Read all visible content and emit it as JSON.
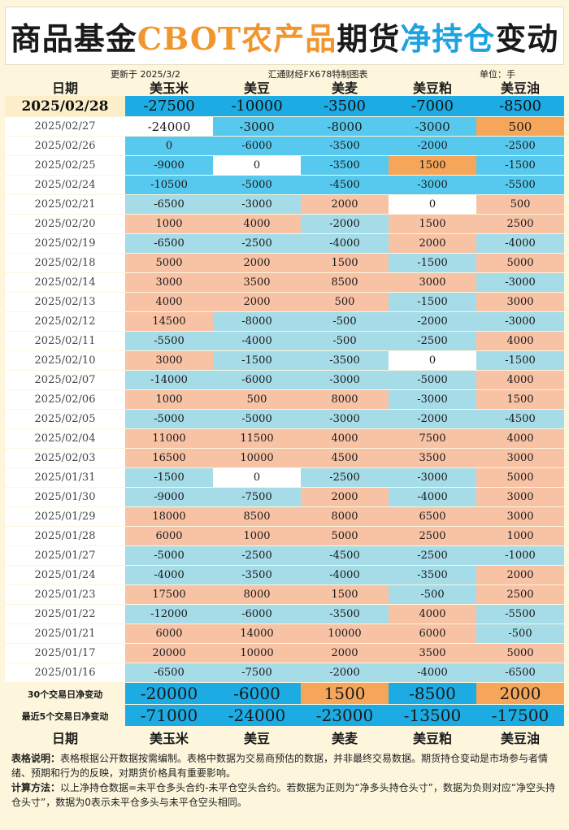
{
  "title": {
    "part1": "商品基金",
    "part2": "CBOT农产品",
    "part3": "期货",
    "part4": "净持仓",
    "part5": "变动"
  },
  "meta": {
    "updated": "更新于 2025/3/2",
    "source": "汇通财经FX678特制图表",
    "unit": "单位：手"
  },
  "header": {
    "date": "日期",
    "corn": "美玉米",
    "soy": "美豆",
    "wheat": "美麦",
    "meal": "美豆粕",
    "oil": "美豆油"
  },
  "rows": [
    {
      "date": "2025/02/28",
      "v": [
        "-27500",
        "-10000",
        "-3500",
        "-7000",
        "-8500"
      ]
    },
    {
      "date": "2025/02/27",
      "v": [
        "-24000",
        "-3000",
        "-8000",
        "-3000",
        "500"
      ]
    },
    {
      "date": "2025/02/26",
      "v": [
        "0",
        "-6000",
        "-3500",
        "-2000",
        "-2500"
      ]
    },
    {
      "date": "2025/02/25",
      "v": [
        "-9000",
        "0",
        "-3500",
        "1500",
        "-1500"
      ]
    },
    {
      "date": "2025/02/24",
      "v": [
        "-10500",
        "-5000",
        "-4500",
        "-3000",
        "-5500"
      ]
    },
    {
      "date": "2025/02/21",
      "v": [
        "-6500",
        "-3000",
        "2000",
        "0",
        "500"
      ]
    },
    {
      "date": "2025/02/20",
      "v": [
        "1000",
        "4000",
        "-2000",
        "1500",
        "2500"
      ]
    },
    {
      "date": "2025/02/19",
      "v": [
        "-6500",
        "-2500",
        "-4000",
        "2000",
        "-4000"
      ]
    },
    {
      "date": "2025/02/18",
      "v": [
        "5000",
        "2000",
        "1500",
        "-1500",
        "5000"
      ]
    },
    {
      "date": "2025/02/14",
      "v": [
        "3000",
        "3500",
        "8500",
        "3000",
        "-3000"
      ]
    },
    {
      "date": "2025/02/13",
      "v": [
        "4000",
        "2000",
        "500",
        "-1500",
        "3000"
      ]
    },
    {
      "date": "2025/02/12",
      "v": [
        "14500",
        "-8000",
        "-500",
        "-2000",
        "-3000"
      ]
    },
    {
      "date": "2025/02/11",
      "v": [
        "-5500",
        "-4000",
        "-500",
        "-2500",
        "4000"
      ]
    },
    {
      "date": "2025/02/10",
      "v": [
        "3000",
        "-1500",
        "-3500",
        "0",
        "-1500"
      ]
    },
    {
      "date": "2025/02/07",
      "v": [
        "-14000",
        "-6000",
        "-3000",
        "-5000",
        "4000"
      ]
    },
    {
      "date": "2025/02/06",
      "v": [
        "1000",
        "500",
        "8000",
        "-3000",
        "1500"
      ]
    },
    {
      "date": "2025/02/05",
      "v": [
        "-5000",
        "-5000",
        "-3000",
        "-2000",
        "-4500"
      ]
    },
    {
      "date": "2025/02/04",
      "v": [
        "11000",
        "11500",
        "4000",
        "7500",
        "4000"
      ]
    },
    {
      "date": "2025/02/03",
      "v": [
        "16500",
        "10000",
        "4500",
        "3500",
        "3000"
      ]
    },
    {
      "date": "2025/01/31",
      "v": [
        "-1500",
        "0",
        "-2500",
        "-3000",
        "5000"
      ]
    },
    {
      "date": "2025/01/30",
      "v": [
        "-9000",
        "-7500",
        "2000",
        "-4000",
        "3000"
      ]
    },
    {
      "date": "2025/01/29",
      "v": [
        "18000",
        "8500",
        "8000",
        "6500",
        "3000"
      ]
    },
    {
      "date": "2025/01/28",
      "v": [
        "6000",
        "1000",
        "5000",
        "2500",
        "1000"
      ]
    },
    {
      "date": "2025/01/27",
      "v": [
        "-5000",
        "-2500",
        "-4500",
        "-2500",
        "-1000"
      ]
    },
    {
      "date": "2025/01/24",
      "v": [
        "-4000",
        "-3500",
        "-4000",
        "-3500",
        "2000"
      ]
    },
    {
      "date": "2025/01/23",
      "v": [
        "17500",
        "8000",
        "1500",
        "-500",
        "2500"
      ]
    },
    {
      "date": "2025/01/22",
      "v": [
        "-12000",
        "-6000",
        "-3500",
        "4000",
        "-5500"
      ]
    },
    {
      "date": "2025/01/21",
      "v": [
        "6000",
        "14000",
        "10000",
        "6000",
        "-500"
      ]
    },
    {
      "date": "2025/01/17",
      "v": [
        "20000",
        "10000",
        "2000",
        "3500",
        "5000"
      ]
    },
    {
      "date": "2025/01/16",
      "v": [
        "-6500",
        "-7500",
        "-2000",
        "-4000",
        "-6500"
      ]
    }
  ],
  "summary": [
    {
      "label": "30个交易日净变动",
      "v": [
        "-20000",
        "-6000",
        "1500",
        "-8500",
        "2000"
      ]
    },
    {
      "label": "最近5个交易日净变动",
      "v": [
        "-71000",
        "-24000",
        "-23000",
        "-13500",
        "-17500"
      ]
    }
  ],
  "notes": {
    "label1": "表格说明：",
    "text1": "表格根据公开数据按需编制。表格中数据为交易商预估的数据，并非最终交易数据。期货持仓变动是市场参与者情绪、预期和行为的反映，对期货价格具有重要影响。",
    "label2": "计算方法：",
    "text2": "以上净持仓数据=未平仓多头合约-未平仓空头合约。若数据为正则为“净多头持仓头寸”，数据为负则对应“净空头持仓头寸”，数据为0表示未平仓多头与未平仓空头相同。"
  },
  "colors": {
    "blue": "#1dabe3",
    "light_blue": "#a6dbe8",
    "mid_blue": "#57c9ee",
    "salmon": "#f8c2a5",
    "orange": "#f6a65a",
    "white": "#ffffff",
    "title_orange": "#f0962e",
    "title_blue": "#1ea3df"
  }
}
